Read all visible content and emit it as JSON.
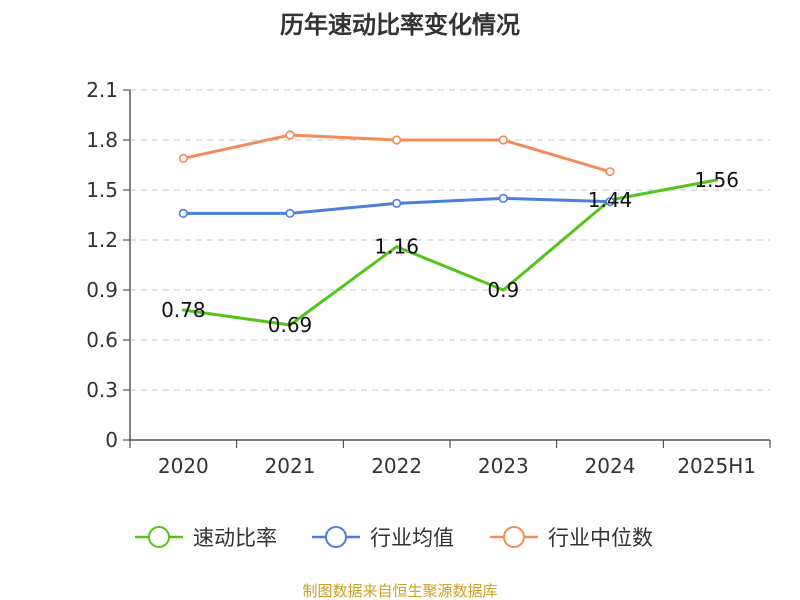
{
  "chart_data": {
    "type": "line",
    "title": "历年速动比率变化情况",
    "categories": [
      "2020",
      "2021",
      "2022",
      "2023",
      "2024",
      "2025H1"
    ],
    "ylim": [
      0,
      2.1
    ],
    "yticks": [
      "0",
      "0.3",
      "0.6",
      "0.9",
      "1.2",
      "1.5",
      "1.8",
      "2.1"
    ],
    "grid": true,
    "legend_position": "bottom",
    "series": [
      {
        "name": "速动比率",
        "color": "#52c41a",
        "values": [
          0.78,
          0.69,
          1.16,
          0.9,
          1.44,
          1.56
        ],
        "labels": [
          "0.78",
          "0.69",
          "1.16",
          "0.9",
          "1.44",
          "1.56"
        ],
        "marker": "none"
      },
      {
        "name": "行业均值",
        "color": "#4a7fdb",
        "values": [
          1.36,
          1.36,
          1.42,
          1.45,
          1.43,
          null
        ],
        "marker": "circle"
      },
      {
        "name": "行业中位数",
        "color": "#f28c5a",
        "values": [
          1.69,
          1.83,
          1.8,
          1.8,
          1.61,
          null
        ],
        "marker": "circle"
      }
    ],
    "source": "制图数据来自恒生聚源数据库"
  }
}
